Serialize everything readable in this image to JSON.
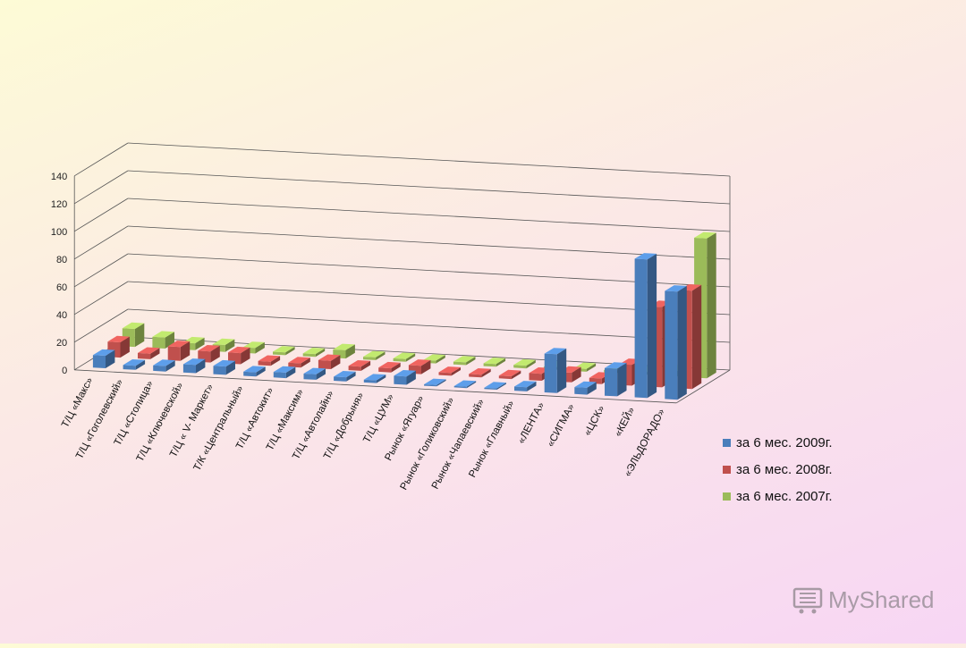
{
  "chart_data": {
    "type": "bar",
    "categories": [
      "Т/Ц «Макс»",
      "Т/Ц «Гоголевский»",
      "Т/Ц «Столица»",
      "Т/Ц «Ключевской»",
      "Т/Ц « V- Маркет»",
      "Т/К «Центральный»",
      "Т/Ц «Автокит»",
      "Т/Ц «Максим»",
      "Т/Ц «Автолайн»",
      "Т/Ц «Добрыня»",
      "Т/Ц «ЦУМ»",
      "Рынок «Ягуар»",
      "Рынок «Голиковский»",
      "Рынок «Чапаевский»",
      "Рынок «Главный»",
      "«ЛЕНТА»",
      "«СИГМА»",
      "«ЦСК»",
      "«КЕЙ»",
      "«ЭЛЬДОРАДО»"
    ],
    "series": [
      {
        "name": "за 6 мес. 2009г.",
        "color": "#4a7ebb",
        "values": [
          9,
          3,
          4,
          6,
          6,
          3,
          4,
          4,
          3,
          2,
          6,
          1,
          1,
          1,
          3,
          28,
          5,
          20,
          100,
          78
        ]
      },
      {
        "name": "за 6 мес. 2008г.",
        "color": "#c0504d",
        "values": [
          11,
          4,
          10,
          8,
          8,
          3,
          3,
          6,
          3,
          3,
          6,
          2,
          2,
          2,
          5,
          7,
          4,
          15,
          58,
          71
        ]
      },
      {
        "name": "за 6 мес. 2007г.",
        "color": "#9bbb59",
        "values": [
          13,
          8,
          5,
          5,
          4,
          2,
          2,
          6,
          2,
          2,
          2,
          2,
          2,
          2,
          2,
          2,
          2,
          2,
          4,
          101
        ]
      }
    ],
    "ylim": [
      0,
      140
    ],
    "yticks": [
      "0",
      "20",
      "40",
      "60",
      "80",
      "100",
      "120",
      "140"
    ],
    "grid": true,
    "legend_position": "right"
  },
  "watermark": {
    "text": "MyShared",
    "icon": "cart-icon"
  }
}
